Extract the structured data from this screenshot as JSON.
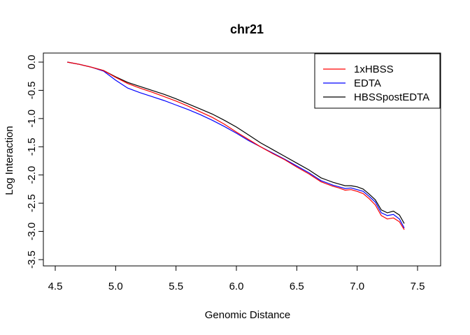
{
  "chart_data": {
    "type": "line",
    "title": "chr21",
    "xlabel": "Genomic Distance",
    "ylabel": "Log Interaction",
    "xlim": [
      4.5,
      7.7
    ],
    "ylim": [
      -3.5,
      0.0
    ],
    "x_ticks": [
      "4.5",
      "5.0",
      "5.5",
      "6.0",
      "6.5",
      "7.0",
      "7.5"
    ],
    "y_ticks": [
      "0.0",
      "-0.5",
      "-1.0",
      "-1.5",
      "-2.0",
      "-2.5",
      "-3.0",
      "-3.5"
    ],
    "grid": false,
    "legend_position": "top-right",
    "series": [
      {
        "name": "1xHBSS",
        "color": "#ff0000",
        "points": [
          [
            4.6,
            0.0
          ],
          [
            4.7,
            -0.04
          ],
          [
            4.8,
            -0.09
          ],
          [
            4.9,
            -0.15
          ],
          [
            5.0,
            -0.27
          ],
          [
            5.1,
            -0.38
          ],
          [
            5.2,
            -0.46
          ],
          [
            5.3,
            -0.53
          ],
          [
            5.4,
            -0.61
          ],
          [
            5.5,
            -0.69
          ],
          [
            5.6,
            -0.78
          ],
          [
            5.7,
            -0.88
          ],
          [
            5.8,
            -0.98
          ],
          [
            5.9,
            -1.1
          ],
          [
            6.0,
            -1.24
          ],
          [
            6.1,
            -1.37
          ],
          [
            6.2,
            -1.5
          ],
          [
            6.3,
            -1.62
          ],
          [
            6.4,
            -1.73
          ],
          [
            6.5,
            -1.86
          ],
          [
            6.6,
            -1.98
          ],
          [
            6.65,
            -2.05
          ],
          [
            6.7,
            -2.12
          ],
          [
            6.75,
            -2.16
          ],
          [
            6.8,
            -2.2
          ],
          [
            6.85,
            -2.23
          ],
          [
            6.9,
            -2.27
          ],
          [
            6.95,
            -2.26
          ],
          [
            7.0,
            -2.29
          ],
          [
            7.05,
            -2.33
          ],
          [
            7.1,
            -2.42
          ],
          [
            7.15,
            -2.53
          ],
          [
            7.2,
            -2.72
          ],
          [
            7.25,
            -2.78
          ],
          [
            7.3,
            -2.76
          ],
          [
            7.35,
            -2.83
          ],
          [
            7.39,
            -2.97
          ]
        ]
      },
      {
        "name": "EDTA",
        "color": "#0000ff",
        "points": [
          [
            4.6,
            0.0
          ],
          [
            4.7,
            -0.04
          ],
          [
            4.8,
            -0.09
          ],
          [
            4.9,
            -0.16
          ],
          [
            5.0,
            -0.32
          ],
          [
            5.1,
            -0.46
          ],
          [
            5.2,
            -0.54
          ],
          [
            5.3,
            -0.61
          ],
          [
            5.4,
            -0.68
          ],
          [
            5.5,
            -0.76
          ],
          [
            5.6,
            -0.84
          ],
          [
            5.7,
            -0.93
          ],
          [
            5.8,
            -1.03
          ],
          [
            5.9,
            -1.14
          ],
          [
            6.0,
            -1.26
          ],
          [
            6.1,
            -1.39
          ],
          [
            6.2,
            -1.5
          ],
          [
            6.3,
            -1.61
          ],
          [
            6.4,
            -1.72
          ],
          [
            6.5,
            -1.84
          ],
          [
            6.6,
            -1.96
          ],
          [
            6.65,
            -2.03
          ],
          [
            6.7,
            -2.1
          ],
          [
            6.75,
            -2.14
          ],
          [
            6.8,
            -2.18
          ],
          [
            6.85,
            -2.21
          ],
          [
            6.9,
            -2.24
          ],
          [
            6.95,
            -2.23
          ],
          [
            7.0,
            -2.26
          ],
          [
            7.05,
            -2.29
          ],
          [
            7.1,
            -2.38
          ],
          [
            7.15,
            -2.48
          ],
          [
            7.2,
            -2.67
          ],
          [
            7.25,
            -2.72
          ],
          [
            7.3,
            -2.7
          ],
          [
            7.35,
            -2.78
          ],
          [
            7.39,
            -2.94
          ]
        ]
      },
      {
        "name": "HBSSpostEDTA",
        "color": "#000000",
        "points": [
          [
            4.6,
            0.0
          ],
          [
            4.7,
            -0.04
          ],
          [
            4.8,
            -0.09
          ],
          [
            4.9,
            -0.15
          ],
          [
            5.0,
            -0.26
          ],
          [
            5.1,
            -0.36
          ],
          [
            5.2,
            -0.43
          ],
          [
            5.3,
            -0.5
          ],
          [
            5.4,
            -0.57
          ],
          [
            5.5,
            -0.65
          ],
          [
            5.6,
            -0.74
          ],
          [
            5.7,
            -0.83
          ],
          [
            5.8,
            -0.92
          ],
          [
            5.9,
            -1.03
          ],
          [
            6.0,
            -1.15
          ],
          [
            6.1,
            -1.29
          ],
          [
            6.2,
            -1.43
          ],
          [
            6.3,
            -1.55
          ],
          [
            6.4,
            -1.67
          ],
          [
            6.5,
            -1.79
          ],
          [
            6.6,
            -1.91
          ],
          [
            6.65,
            -1.98
          ],
          [
            6.7,
            -2.05
          ],
          [
            6.75,
            -2.09
          ],
          [
            6.8,
            -2.13
          ],
          [
            6.85,
            -2.16
          ],
          [
            6.9,
            -2.19
          ],
          [
            6.95,
            -2.19
          ],
          [
            7.0,
            -2.21
          ],
          [
            7.05,
            -2.25
          ],
          [
            7.1,
            -2.34
          ],
          [
            7.15,
            -2.44
          ],
          [
            7.2,
            -2.62
          ],
          [
            7.25,
            -2.67
          ],
          [
            7.3,
            -2.64
          ],
          [
            7.35,
            -2.71
          ],
          [
            7.39,
            -2.86
          ]
        ]
      }
    ]
  }
}
